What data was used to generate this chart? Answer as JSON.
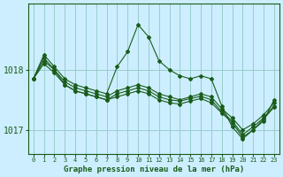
{
  "title": "Graphe pression niveau de la mer (hPa)",
  "background_color": "#cceeff",
  "grid_color": "#99cccc",
  "line_color": "#1a5c1a",
  "series": [
    [
      1017.85,
      1018.25,
      1018.05,
      1017.85,
      1017.75,
      1017.7,
      1017.65,
      1017.6,
      1018.05,
      1018.3,
      1018.75,
      1018.55,
      1018.15,
      1018.0,
      1017.9,
      1017.85,
      1017.9,
      1017.85,
      1017.4,
      1017.05,
      1016.85,
      1017.0,
      1017.15,
      1017.5
    ],
    [
      1017.85,
      1018.2,
      1018.0,
      1017.8,
      1017.7,
      1017.65,
      1017.6,
      1017.55,
      1017.65,
      1017.7,
      1017.75,
      1017.7,
      1017.6,
      1017.55,
      1017.5,
      1017.55,
      1017.6,
      1017.55,
      1017.35,
      1017.2,
      1017.0,
      1017.1,
      1017.25,
      1017.45
    ],
    [
      1017.85,
      1018.15,
      1018.0,
      1017.75,
      1017.65,
      1017.6,
      1017.55,
      1017.5,
      1017.6,
      1017.65,
      1017.7,
      1017.65,
      1017.55,
      1017.5,
      1017.48,
      1017.52,
      1017.56,
      1017.5,
      1017.3,
      1017.15,
      1016.92,
      1017.05,
      1017.2,
      1017.4
    ],
    [
      1017.85,
      1018.1,
      1017.95,
      1017.75,
      1017.65,
      1017.6,
      1017.55,
      1017.5,
      1017.55,
      1017.6,
      1017.65,
      1017.6,
      1017.5,
      1017.45,
      1017.43,
      1017.48,
      1017.52,
      1017.45,
      1017.28,
      1017.12,
      1016.88,
      1017.0,
      1017.18,
      1017.38
    ]
  ],
  "yticks": [
    1017.0,
    1018.0
  ],
  "ylim": [
    1016.6,
    1019.1
  ],
  "xlim": [
    -0.5,
    23.5
  ],
  "xticks": [
    0,
    1,
    2,
    3,
    4,
    5,
    6,
    7,
    8,
    9,
    10,
    11,
    12,
    13,
    14,
    15,
    16,
    17,
    18,
    19,
    20,
    21,
    22,
    23
  ],
  "xlabel_fontsize": 6.5,
  "ytick_fontsize": 7,
  "xtick_fontsize": 5
}
